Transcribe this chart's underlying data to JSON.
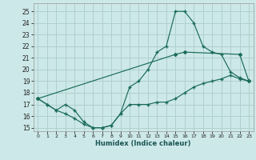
{
  "xlabel": "Humidex (Indice chaleur)",
  "bg_color": "#cde8e8",
  "grid_color": "#b0d0d0",
  "line_color": "#1a6b5a",
  "xlim": [
    -0.5,
    23.5
  ],
  "ylim": [
    14.7,
    25.7
  ],
  "yticks": [
    15,
    16,
    17,
    18,
    19,
    20,
    21,
    22,
    23,
    24,
    25
  ],
  "xticks": [
    0,
    1,
    2,
    3,
    4,
    5,
    6,
    7,
    8,
    9,
    10,
    11,
    12,
    13,
    14,
    15,
    16,
    17,
    18,
    19,
    20,
    21,
    22,
    23
  ],
  "line1_x": [
    0,
    1,
    2,
    3,
    4,
    5,
    6,
    7,
    8,
    9,
    10,
    11,
    12,
    13,
    14,
    15,
    16,
    17,
    18,
    19,
    20,
    21,
    22,
    23
  ],
  "line1_y": [
    17.5,
    17.0,
    16.5,
    16.2,
    15.8,
    15.3,
    15.0,
    15.0,
    15.2,
    16.2,
    17.0,
    17.0,
    17.0,
    17.2,
    17.2,
    17.5,
    18.0,
    18.5,
    18.8,
    19.0,
    19.2,
    19.5,
    19.2,
    19.0
  ],
  "line2_x": [
    0,
    1,
    2,
    3,
    4,
    5,
    6,
    7,
    8,
    9,
    10,
    11,
    12,
    13,
    14,
    15,
    16,
    17,
    18,
    19,
    20,
    21,
    22,
    23
  ],
  "line2_y": [
    17.5,
    17.0,
    16.5,
    17.0,
    16.5,
    15.5,
    15.0,
    15.0,
    15.2,
    16.2,
    18.5,
    19.0,
    20.0,
    21.5,
    22.0,
    25.0,
    25.0,
    24.0,
    22.0,
    21.5,
    21.3,
    19.8,
    19.3,
    19.0
  ],
  "line3_x": [
    0,
    15,
    16,
    22,
    23
  ],
  "line3_y": [
    17.5,
    21.3,
    21.5,
    21.3,
    19.0
  ]
}
